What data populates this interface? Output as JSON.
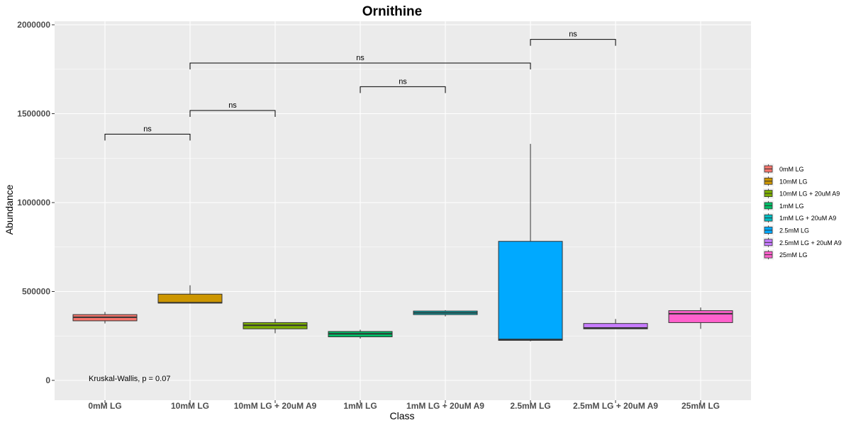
{
  "chart_data": {
    "type": "box",
    "title": "Ornithine",
    "xlabel": "Class",
    "ylabel": "Abundance",
    "ylim": [
      -100000,
      2020000
    ],
    "yticks": [
      0,
      500000,
      1000000,
      1500000,
      2000000
    ],
    "ytick_labels": [
      "0",
      "500000",
      "1000000",
      "1500000",
      "2000000"
    ],
    "grid": true,
    "legend_position": "right",
    "categories": [
      "0mM LG",
      "10mM LG",
      "10mM LG + 20uM A9",
      "1mM LG",
      "1mM LG + 20uM A9",
      "2.5mM LG",
      "2.5mM LG + 20uM A9",
      "25mM LG"
    ],
    "series": [
      {
        "name": "0mM LG",
        "color": "#F8766D",
        "min": 320000,
        "q1": 335000,
        "median": 355000,
        "q3": 370000,
        "max": 385000
      },
      {
        "name": "10mM LG",
        "color": "#CD9600",
        "min": 435000,
        "q1": 435000,
        "median": 437000,
        "q3": 485000,
        "max": 535000
      },
      {
        "name": "10mM LG + 20uM A9",
        "color": "#7CAE00",
        "min": 265000,
        "q1": 290000,
        "median": 310000,
        "q3": 325000,
        "max": 345000
      },
      {
        "name": "1mM LG",
        "color": "#00BE67",
        "min": 235000,
        "q1": 245000,
        "median": 262000,
        "q3": 275000,
        "max": 285000
      },
      {
        "name": "1mM LG + 20uM A9",
        "color": "#00BFC4",
        "min": 360000,
        "q1": 370000,
        "median": 380000,
        "q3": 390000,
        "max": 395000
      },
      {
        "name": "2.5mM LG",
        "color": "#00A9FF",
        "min": 220000,
        "q1": 225000,
        "median": 230000,
        "q3": 782000,
        "max": 1330000
      },
      {
        "name": "2.5mM LG + 20uM A9",
        "color": "#C77CFF",
        "min": 290000,
        "q1": 290000,
        "median": 295000,
        "q3": 320000,
        "max": 345000
      },
      {
        "name": "25mM LG",
        "color": "#FF61CC",
        "min": 290000,
        "q1": 325000,
        "median": 375000,
        "q3": 392000,
        "max": 410000
      }
    ],
    "comparisons": [
      {
        "from": 0,
        "to": 1,
        "y": 1385000,
        "label": "ns"
      },
      {
        "from": 1,
        "to": 2,
        "y": 1518000,
        "label": "ns"
      },
      {
        "from": 3,
        "to": 4,
        "y": 1652000,
        "label": "ns"
      },
      {
        "from": 1,
        "to": 5,
        "y": 1785000,
        "label": "ns"
      },
      {
        "from": 5,
        "to": 6,
        "y": 1918000,
        "label": "ns"
      }
    ],
    "annotation": "Kruskal-Wallis, p = 0.07"
  }
}
